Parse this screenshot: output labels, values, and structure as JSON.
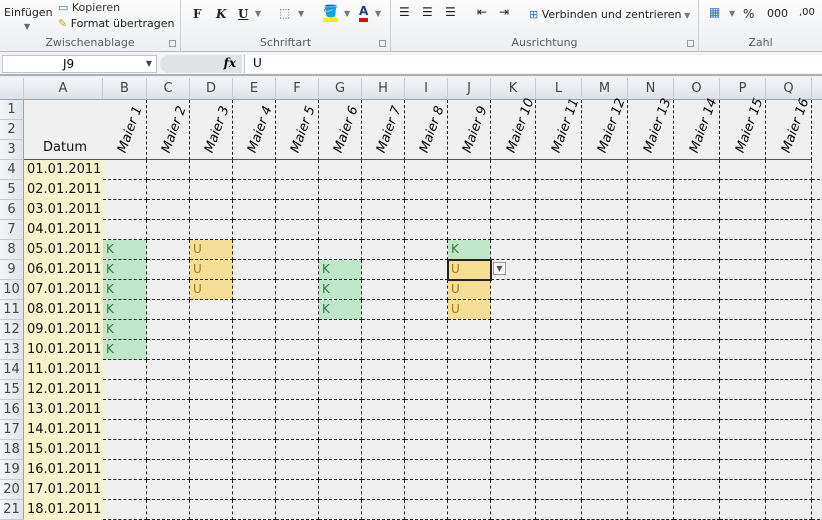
{
  "ribbon": {
    "clipboard": {
      "paste": "Einfügen",
      "copy": "Kopieren",
      "format_painter": "Format übertragen",
      "label": "Zwischenablage"
    },
    "font": {
      "bold": "F",
      "italic": "K",
      "underline": "U",
      "label": "Schriftart"
    },
    "alignment": {
      "merge": "Verbinden und zentrieren",
      "label": "Ausrichtung"
    },
    "number": {
      "percent": "%",
      "thousands": "000",
      "decimal": ",00",
      "label": "Zahl"
    }
  },
  "formula_bar": {
    "name_box": "J9",
    "fx": "fx",
    "value": "U"
  },
  "sheet": {
    "columns": [
      "A",
      "B",
      "C",
      "D",
      "E",
      "F",
      "G",
      "H",
      "I",
      "J",
      "K",
      "L",
      "M",
      "N",
      "O",
      "P",
      "Q"
    ],
    "header_label": "Datum",
    "employees": [
      "Maier 1",
      "Maier 2",
      "Maier 3",
      "Maier 4",
      "Maier 5",
      "Maier 6",
      "Maier 7",
      "Maier 8",
      "Maier 9",
      "Maier 10",
      "Maier 11",
      "Maier 12",
      "Maier 13",
      "Maier 14",
      "Maier 15",
      "Maier 16"
    ],
    "dates": [
      "01.01.2011",
      "02.01.2011",
      "03.01.2011",
      "04.01.2011",
      "05.01.2011",
      "06.01.2011",
      "07.01.2011",
      "08.01.2011",
      "09.01.2011",
      "10.01.2011",
      "11.01.2011",
      "12.01.2011",
      "13.01.2011",
      "14.01.2011",
      "15.01.2011",
      "16.01.2011",
      "17.01.2011",
      "18.01.2011"
    ],
    "entries": [
      {
        "cell": "B8",
        "value": "K"
      },
      {
        "cell": "B9",
        "value": "K"
      },
      {
        "cell": "B10",
        "value": "K"
      },
      {
        "cell": "B11",
        "value": "K"
      },
      {
        "cell": "B12",
        "value": "K"
      },
      {
        "cell": "B13",
        "value": "K"
      },
      {
        "cell": "D8",
        "value": "U"
      },
      {
        "cell": "D9",
        "value": "U"
      },
      {
        "cell": "D10",
        "value": "U"
      },
      {
        "cell": "G9",
        "value": "K"
      },
      {
        "cell": "G10",
        "value": "K"
      },
      {
        "cell": "G11",
        "value": "K"
      },
      {
        "cell": "J8",
        "value": "K"
      },
      {
        "cell": "J9",
        "value": "U"
      },
      {
        "cell": "J10",
        "value": "U"
      },
      {
        "cell": "J11",
        "value": "U"
      }
    ],
    "selected_cell": "J9",
    "colors": {
      "K": "#bfe6c9",
      "U": "#f4dd94",
      "date_column": "#f6f3cc"
    }
  }
}
